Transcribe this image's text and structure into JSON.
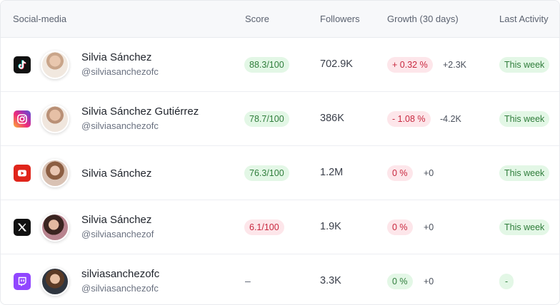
{
  "header": {
    "social_media": "Social-media",
    "score": "Score",
    "followers": "Followers",
    "growth": "Growth (30 days)",
    "last_activity": "Last Activity"
  },
  "colors": {
    "positive_bg": "#e3f7e6",
    "positive_text": "#2f7d3b",
    "negative_bg": "#fde6ea",
    "negative_text": "#c8283f"
  },
  "rows": [
    {
      "platform_icon": "tiktok-icon",
      "name": "Silvia Sánchez",
      "handle": "@silviasanchezofc",
      "score": "88.3/100",
      "followers": "702.9K",
      "growth_pct": "+ 0.32 %",
      "growth_abs": "+2.3K",
      "last_activity": "This week"
    },
    {
      "platform_icon": "instagram-icon",
      "name": "Silvia Sánchez Gutiérrez",
      "handle": "@silviasanchezofc",
      "score": "78.7/100",
      "followers": "386K",
      "growth_pct": "- 1.08 %",
      "growth_abs": "-4.2K",
      "last_activity": "This week"
    },
    {
      "platform_icon": "youtube-icon",
      "name": "Silvia Sánchez",
      "handle": "",
      "score": "76.3/100",
      "followers": "1.2M",
      "growth_pct": "0 %",
      "growth_abs": "+0",
      "last_activity": "This week"
    },
    {
      "platform_icon": "x-icon",
      "name": "Silvia Sánchez",
      "handle": "@silviasanchezof",
      "score": "6.1/100",
      "followers": "1.9K",
      "growth_pct": "0 %",
      "growth_abs": "+0",
      "last_activity": "This week"
    },
    {
      "platform_icon": "twitch-icon",
      "name": "silviasanchezofc",
      "handle": "@silviasanchezofc",
      "score": "–",
      "followers": "3.3K",
      "growth_pct": "0 %",
      "growth_abs": "+0",
      "last_activity": "-"
    }
  ]
}
